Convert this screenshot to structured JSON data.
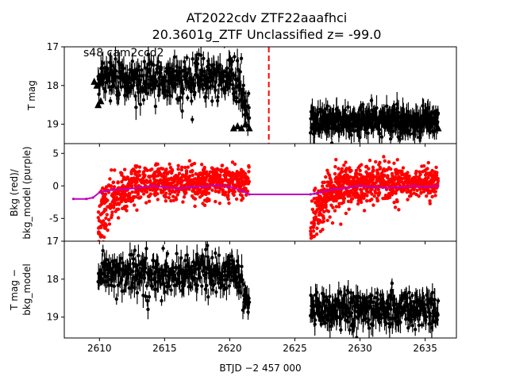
{
  "figure": {
    "title_line1": "AT2022cdv  ZTF22aaafhci",
    "title_line2": "20.3601g_ZTF Unclassified z= -99.0",
    "xlabel": "BTJD −2 457 000",
    "x_ticks": [
      2610,
      2615,
      2620,
      2625,
      2630,
      2635
    ]
  },
  "chart_data": [
    {
      "type": "scatter",
      "panel": "top",
      "annotation": "s48 cam2ccd2",
      "ylabel": "T mag",
      "y_inverted": true,
      "ylim": [
        19.5,
        17.0
      ],
      "xlim": [
        2607.3,
        2637.4
      ],
      "y_ticks": [
        17,
        18,
        19
      ],
      "marker_color": "#000000",
      "vertical_marker": {
        "x": 2623.0,
        "color": "#ff0000",
        "style": "dashed"
      },
      "series": [
        {
          "segment": 1,
          "x_range": [
            2609.9,
            2621.5
          ],
          "y_mean": 17.85,
          "y_scatter": 0.6
        },
        {
          "segment": 2,
          "x_range": [
            2626.2,
            2636.0
          ],
          "y_mean": 18.9,
          "y_scatter": 0.4
        }
      ],
      "upper_limits": {
        "x": [
          2609.6,
          2609.8,
          2609.9,
          2610.1,
          2620.3,
          2620.6,
          2620.9,
          2621.2,
          2621.5,
          2636.0
        ],
        "y": [
          17.9,
          18.0,
          18.5,
          18.4,
          19.1,
          19.05,
          19.1,
          19.0,
          19.1,
          19.1
        ]
      }
    },
    {
      "type": "scatter",
      "panel": "middle",
      "ylabel": "Bkg (red)/\nbkg_model (purple)",
      "ylim": [
        -8.5,
        6.5
      ],
      "y_ticks": [
        5,
        0,
        -5
      ],
      "bkg_color": "#ff0000",
      "model_color": "#bf00bf",
      "bkg_model": {
        "x": [
          2608.0,
          2609.0,
          2609.5,
          2610.0,
          2610.5,
          2611.0,
          2612.0,
          2613.0,
          2614.0,
          2615.0,
          2616.0,
          2617.0,
          2618.0,
          2619.0,
          2620.0,
          2621.0,
          2621.5,
          2626.2,
          2626.5,
          2627.0,
          2628.0,
          2629.0,
          2630.0,
          2631.0,
          2632.0,
          2633.0,
          2634.0,
          2635.0,
          2636.0
        ],
        "y": [
          -2.0,
          -2.0,
          -1.8,
          -1.0,
          -0.8,
          -0.6,
          -0.5,
          -0.3,
          0.0,
          -0.2,
          -0.4,
          -0.2,
          -0.1,
          0.1,
          -0.1,
          -0.8,
          -1.3,
          -1.3,
          -1.2,
          -1.0,
          -0.5,
          -0.3,
          0.0,
          -0.2,
          -0.3,
          -0.2,
          0.0,
          -0.2,
          0.0
        ]
      },
      "bkg_segments": [
        {
          "x_range": [
            2609.9,
            2621.5
          ],
          "trend": "rises from about -7 to about 1"
        },
        {
          "x_range": [
            2626.2,
            2636.0
          ],
          "trend": "rises from about -7 to about 1"
        }
      ]
    },
    {
      "type": "scatter",
      "panel": "bottom",
      "ylabel": "T mag −\nbkg_model",
      "y_inverted": true,
      "ylim": [
        19.55,
        17.0
      ],
      "y_ticks": [
        17,
        18,
        19
      ],
      "marker_color": "#000000",
      "series": [
        {
          "segment": 1,
          "x_range": [
            2609.9,
            2621.5
          ],
          "y_mean": 17.85,
          "y_scatter": 0.55
        },
        {
          "segment": 2,
          "x_range": [
            2626.2,
            2636.0
          ],
          "y_mean": 18.8,
          "y_scatter": 0.5
        }
      ]
    }
  ]
}
